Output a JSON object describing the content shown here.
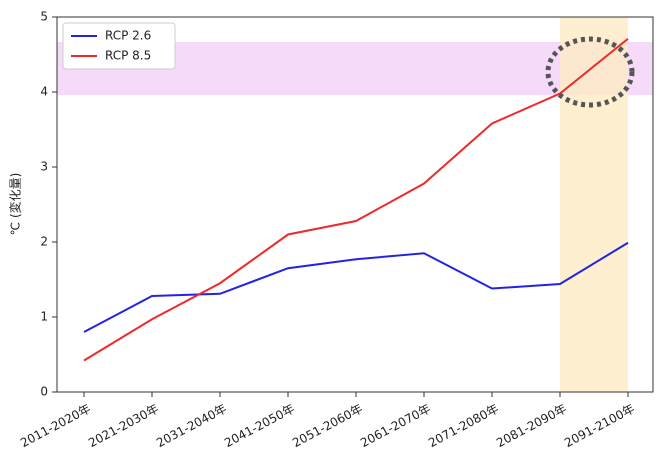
{
  "chart_data": {
    "type": "line",
    "ylabel": "℃ (変化量)",
    "categories": [
      "2011-2020年",
      "2021-2030年",
      "2031-2040年",
      "2041-2050年",
      "2051-2060年",
      "2061-2070年",
      "2071-2080年",
      "2081-2090年",
      "2091-2100年"
    ],
    "series": [
      {
        "name": "RCP 2.6",
        "color": "#2323e6",
        "values": [
          0.8,
          1.28,
          1.31,
          1.65,
          1.77,
          1.85,
          1.38,
          1.44,
          1.99
        ]
      },
      {
        "name": "RCP 8.5",
        "color": "#ee2a2a",
        "values": [
          0.42,
          0.97,
          1.45,
          2.1,
          2.28,
          2.78,
          3.58,
          3.98,
          4.71
        ]
      }
    ],
    "ylim": [
      0,
      5
    ],
    "yticks": [
      0,
      1,
      2,
      3,
      4,
      5
    ],
    "grid": false,
    "legend": "upper left"
  }
}
